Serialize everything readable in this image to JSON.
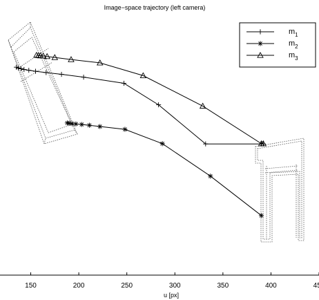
{
  "chart_data": {
    "type": "line",
    "title": "Image−space trajectory (left camera)",
    "xlabel": "u [px]",
    "ylabel": "",
    "xlim": [
      118,
      450
    ],
    "ylim": [
      0,
      100
    ],
    "y_inverted": true,
    "x_ticks": [
      {
        "value": 150,
        "label": "150"
      },
      {
        "value": 200,
        "label": "200"
      },
      {
        "value": 250,
        "label": "250"
      },
      {
        "value": 300,
        "label": "300"
      },
      {
        "value": 350,
        "label": "350"
      },
      {
        "value": 400,
        "label": "400"
      },
      {
        "value": 450,
        "label": "450"
      }
    ],
    "y_ticks_visible": false,
    "grid": false,
    "legend_position": "top-right",
    "series": [
      {
        "name": "m",
        "subscript": "1",
        "marker": "plus",
        "x": [
          135,
          137,
          140,
          143,
          148,
          155,
          166,
          182,
          205,
          247,
          283,
          332,
          390,
          392
        ],
        "y": [
          18.7,
          19.0,
          19.3,
          19.6,
          19.9,
          20.3,
          20.8,
          21.5,
          22.6,
          25.0,
          33.4,
          48.7,
          48.7,
          48.7
        ]
      },
      {
        "name": "m",
        "subscript": "2",
        "marker": "asterisk",
        "x": [
          188,
          190,
          193,
          197,
          203,
          211,
          222,
          248,
          287,
          337,
          390
        ],
        "y": [
          40.5,
          40.6,
          40.8,
          40.9,
          41.1,
          41.4,
          41.9,
          43.0,
          48.6,
          61.3,
          76.7
        ]
      },
      {
        "name": "m",
        "subscript": "3",
        "marker": "triangle",
        "x": [
          156,
          158,
          160,
          163,
          167,
          175,
          192,
          222,
          267,
          329,
          390,
          392
        ],
        "y": [
          14.0,
          14.1,
          14.2,
          14.3,
          14.5,
          14.9,
          15.7,
          17.0,
          22.0,
          33.9,
          48.6,
          48.6
        ]
      }
    ],
    "overlays": [
      {
        "name": "initial-camera-view-outline",
        "style": "dotted"
      },
      {
        "name": "target-camera-view-outline",
        "style": "dotted"
      }
    ]
  }
}
